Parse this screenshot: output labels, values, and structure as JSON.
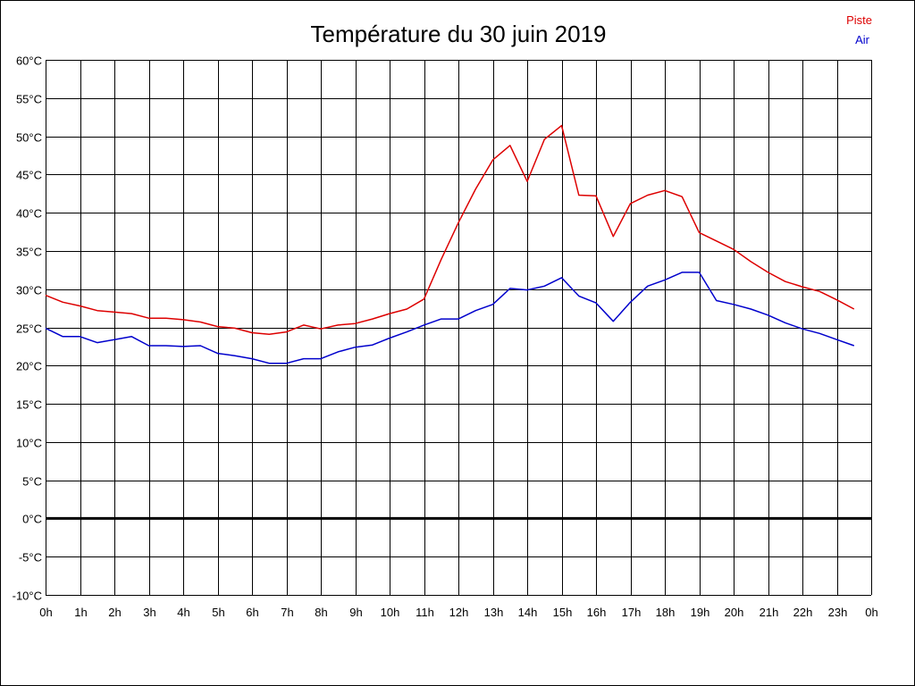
{
  "chart_data": {
    "type": "line",
    "title": "Température du 30 juin 2019",
    "xlabel": "",
    "ylabel": "",
    "x_ticks": [
      "0h",
      "1h",
      "2h",
      "3h",
      "4h",
      "5h",
      "6h",
      "7h",
      "8h",
      "9h",
      "10h",
      "11h",
      "12h",
      "13h",
      "14h",
      "15h",
      "16h",
      "17h",
      "18h",
      "19h",
      "20h",
      "21h",
      "22h",
      "23h",
      "0h"
    ],
    "y_ticks": [
      "60°C",
      "55°C",
      "50°C",
      "45°C",
      "40°C",
      "35°C",
      "30°C",
      "25°C",
      "20°C",
      "15°C",
      "10°C",
      "5°C",
      "0°C",
      "-5°C",
      "-10°C"
    ],
    "xlim": [
      0,
      24
    ],
    "ylim": [
      -10,
      60
    ],
    "grid": true,
    "zero_line": true,
    "legend_position": "top-right",
    "x": [
      0,
      0.5,
      1,
      1.5,
      2,
      2.5,
      3,
      3.5,
      4,
      4.5,
      5,
      5.5,
      6,
      6.5,
      7,
      7.5,
      8,
      8.5,
      9,
      9.5,
      10,
      10.5,
      11,
      11.5,
      12,
      12.5,
      13,
      13.5,
      14,
      14.5,
      15,
      15.5,
      16,
      16.5,
      17,
      17.5,
      18,
      18.5,
      19,
      19.5,
      20,
      20.5,
      21,
      21.5,
      22,
      22.5,
      23,
      23.5
    ],
    "series": [
      {
        "name": "Piste",
        "color": "#dd0000",
        "values": [
          29.2,
          28.3,
          27.8,
          27.2,
          27.0,
          26.8,
          26.2,
          26.2,
          26.0,
          25.7,
          25.1,
          24.9,
          24.3,
          24.1,
          24.4,
          25.3,
          24.8,
          25.3,
          25.5,
          26.1,
          26.8,
          27.4,
          28.7,
          33.9,
          38.7,
          43.1,
          46.9,
          48.8,
          44.1,
          49.6,
          51.4,
          42.3,
          42.2,
          36.9,
          41.2,
          42.3,
          42.9,
          42.1,
          37.4,
          36.3,
          35.2,
          33.6,
          32.2,
          31.0,
          30.3,
          29.7,
          28.6,
          27.4
        ]
      },
      {
        "name": "Air",
        "color": "#0000cc",
        "values": [
          24.9,
          23.8,
          23.8,
          23.0,
          23.4,
          23.8,
          22.6,
          22.6,
          22.5,
          22.6,
          21.6,
          21.3,
          20.9,
          20.3,
          20.3,
          20.9,
          20.9,
          21.8,
          22.4,
          22.7,
          23.6,
          24.4,
          25.3,
          26.1,
          26.1,
          27.2,
          28.0,
          30.1,
          29.9,
          30.4,
          31.5,
          29.1,
          28.2,
          25.8,
          28.3,
          30.4,
          31.2,
          32.2,
          32.2,
          28.5,
          28.0,
          27.4,
          26.6,
          25.6,
          24.8,
          24.2,
          23.4,
          22.6
        ]
      }
    ]
  }
}
